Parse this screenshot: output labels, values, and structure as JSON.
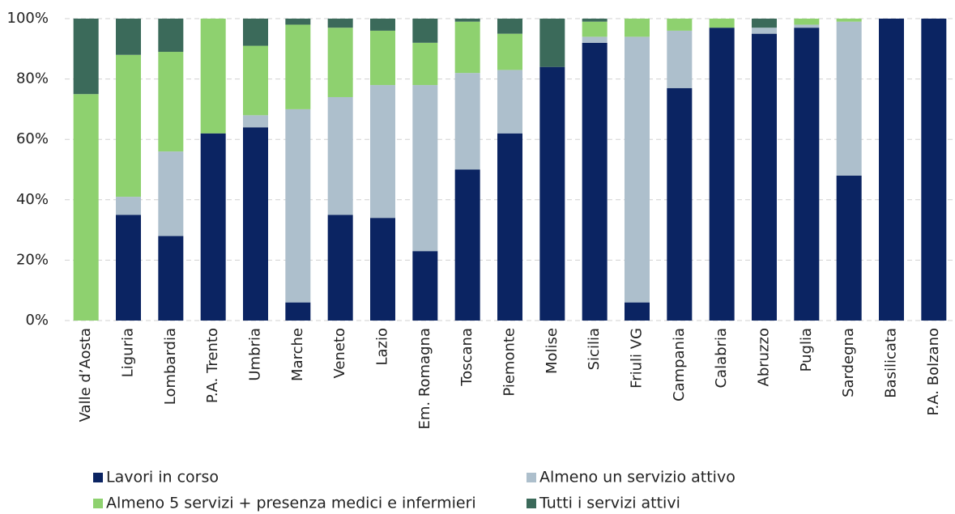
{
  "chart_data": {
    "type": "stacked_bar",
    "categories": [
      "Valle d’Aosta",
      "Liguria",
      "Lombardia",
      "P.A. Trento",
      "Umbria",
      "Marche",
      "Veneto",
      "Lazio",
      "Em. Romagna",
      "Toscana",
      "Piemonte",
      "Molise",
      "Sicilia",
      "Friuli VG",
      "Campania",
      "Calabria",
      "Abruzzo",
      "Puglia",
      "Sardegna",
      "Basilicata",
      "P.A. Bolzano"
    ],
    "series": [
      {
        "name": "Lavori in corso",
        "color": "#0b2462",
        "values": [
          0,
          35,
          28,
          62,
          64,
          6,
          35,
          34,
          23,
          50,
          62,
          84,
          92,
          6,
          77,
          97,
          95,
          97,
          48,
          100,
          100
        ]
      },
      {
        "name": "Almeno un servizio attivo",
        "color": "#adbfcc",
        "values": [
          0,
          6,
          28,
          0,
          4,
          64,
          39,
          44,
          55,
          32,
          21,
          0,
          2,
          88,
          19,
          0,
          2,
          1,
          51,
          0,
          0
        ]
      },
      {
        "name": "Almeno 5 servizi + presenza medici e infermieri",
        "color": "#8ed16f",
        "values": [
          75,
          47,
          33,
          38,
          23,
          28,
          23,
          18,
          14,
          17,
          12,
          0,
          5,
          6,
          4,
          3,
          0,
          2,
          1,
          0,
          0
        ]
      },
      {
        "name": "Tutti i servizi attivi",
        "color": "#3b6a5a",
        "values": [
          25,
          12,
          11,
          0,
          9,
          2,
          3,
          4,
          8,
          1,
          5,
          16,
          1,
          0,
          0,
          0,
          3,
          0,
          0,
          0,
          0
        ]
      }
    ],
    "ylim": [
      0,
      100
    ],
    "yticks": [
      {
        "value": 0,
        "label": "0%"
      },
      {
        "value": 20,
        "label": "20%"
      },
      {
        "value": 40,
        "label": "40%"
      },
      {
        "value": 60,
        "label": "60%"
      },
      {
        "value": 80,
        "label": "80%"
      },
      {
        "value": 100,
        "label": "100%"
      }
    ],
    "grid": true
  }
}
